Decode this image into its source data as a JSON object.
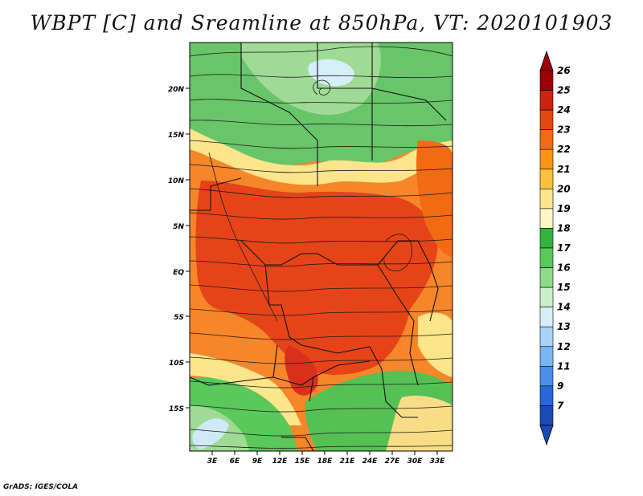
{
  "title": "WBPT [C] and Sreamline at 850hPa, VT: 2020101903",
  "footer": "GrADS: IGES/COLA",
  "lat_labels": [
    "20N",
    "15N",
    "10N",
    "5N",
    "EQ",
    "5S",
    "10S",
    "15S"
  ],
  "lon_labels": [
    "3E",
    "6E",
    "9E",
    "12E",
    "15E",
    "18E",
    "21E",
    "24E",
    "27E",
    "30E",
    "33E"
  ],
  "colorbar": {
    "labels": [
      "26",
      "25",
      "24",
      "23",
      "22",
      "21",
      "20",
      "19",
      "18",
      "17",
      "16",
      "15",
      "14",
      "13",
      "12",
      "11",
      "9",
      "7"
    ],
    "colors": [
      "#a0000a",
      "#d2200e",
      "#e8460f",
      "#f26a12",
      "#fa9516",
      "#fdbf3e",
      "#fde58c",
      "#fff6c4",
      "#32b43c",
      "#5ac85a",
      "#8edc88",
      "#c8f0c8",
      "#d6eefa",
      "#a6d4fa",
      "#7ab6f4",
      "#4a90e8",
      "#2868d6",
      "#1a4ab4"
    ]
  },
  "map": {
    "lon_range": [
      0,
      35
    ],
    "lat_range": [
      -20,
      24.5
    ],
    "variable": "WBPT",
    "units": "C",
    "level": "850hPa",
    "valid_time": "2020101903"
  }
}
